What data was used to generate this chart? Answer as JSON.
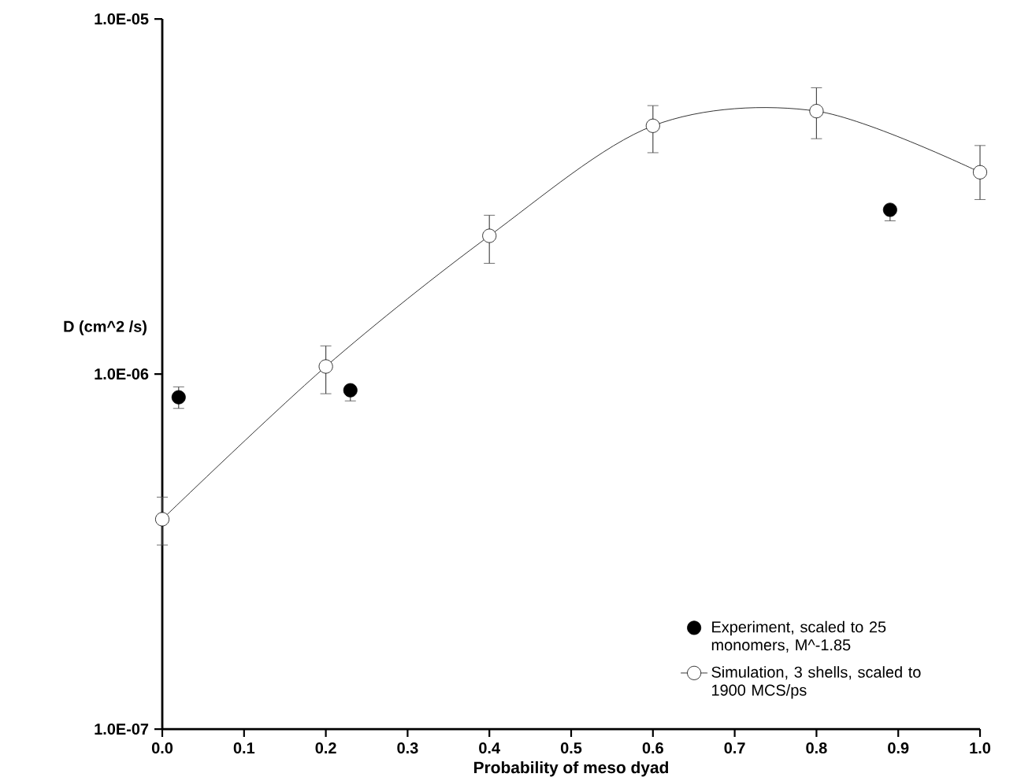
{
  "chart_data": {
    "type": "scatter",
    "xlabel": "Probability of meso dyad",
    "ylabel": "D (cm^2 /s)",
    "log": "y",
    "xlim": [
      0.0,
      1.0
    ],
    "ylim": [
      1e-07,
      1e-05
    ],
    "xticks": [
      {
        "value": 0.0,
        "label": "0.0"
      },
      {
        "value": 0.1,
        "label": "0.1"
      },
      {
        "value": 0.2,
        "label": "0.2"
      },
      {
        "value": 0.3,
        "label": "0.3"
      },
      {
        "value": 0.4,
        "label": "0.4"
      },
      {
        "value": 0.5,
        "label": "0.5"
      },
      {
        "value": 0.6,
        "label": "0.6"
      },
      {
        "value": 0.7,
        "label": "0.7"
      },
      {
        "value": 0.8,
        "label": "0.8"
      },
      {
        "value": 0.9,
        "label": "0.9"
      },
      {
        "value": 1.0,
        "label": "1.0"
      }
    ],
    "yticks": [
      {
        "value": 1e-07,
        "label": "1.0E-07"
      },
      {
        "value": 1e-06,
        "label": "1.0E-06"
      },
      {
        "value": 1e-05,
        "label": "1.0E-05"
      }
    ],
    "grid": false,
    "legend": "bottom right",
    "series": [
      {
        "name": "Experiment, scaled to 25 monomers, M^-1.85",
        "type": "scatter",
        "marker": "circle",
        "color": "#000000",
        "x": [
          0.02,
          0.23,
          0.89
        ],
        "values": [
          8.6e-07,
          9e-07,
          2.9e-06
        ],
        "errors": [
          [
            8e-07,
            9.2e-07
          ],
          [
            8.4e-07,
            9e-07
          ],
          [
            2.7e-06,
            2.9e-06
          ]
        ]
      },
      {
        "name": "Simulation, 3 shells, scaled to 1900 MCS/ps",
        "type": "line",
        "marker": "circle",
        "line_style": "solid",
        "color": "#000000",
        "x": [
          0.0,
          0.2,
          0.4,
          0.6,
          0.8,
          1.0
        ],
        "values": [
          3.9e-07,
          1.05e-06,
          2.45e-06,
          5e-06,
          5.5e-06,
          3.7e-06
        ],
        "errors": [
          [
            3.3e-07,
            4.5e-07
          ],
          [
            8.8e-07,
            1.2e-06
          ],
          [
            2.05e-06,
            2.8e-06
          ],
          [
            4.2e-06,
            5.7e-06
          ],
          [
            4.6e-06,
            6.4e-06
          ],
          [
            3.1e-06,
            4.4e-06
          ]
        ]
      }
    ]
  }
}
